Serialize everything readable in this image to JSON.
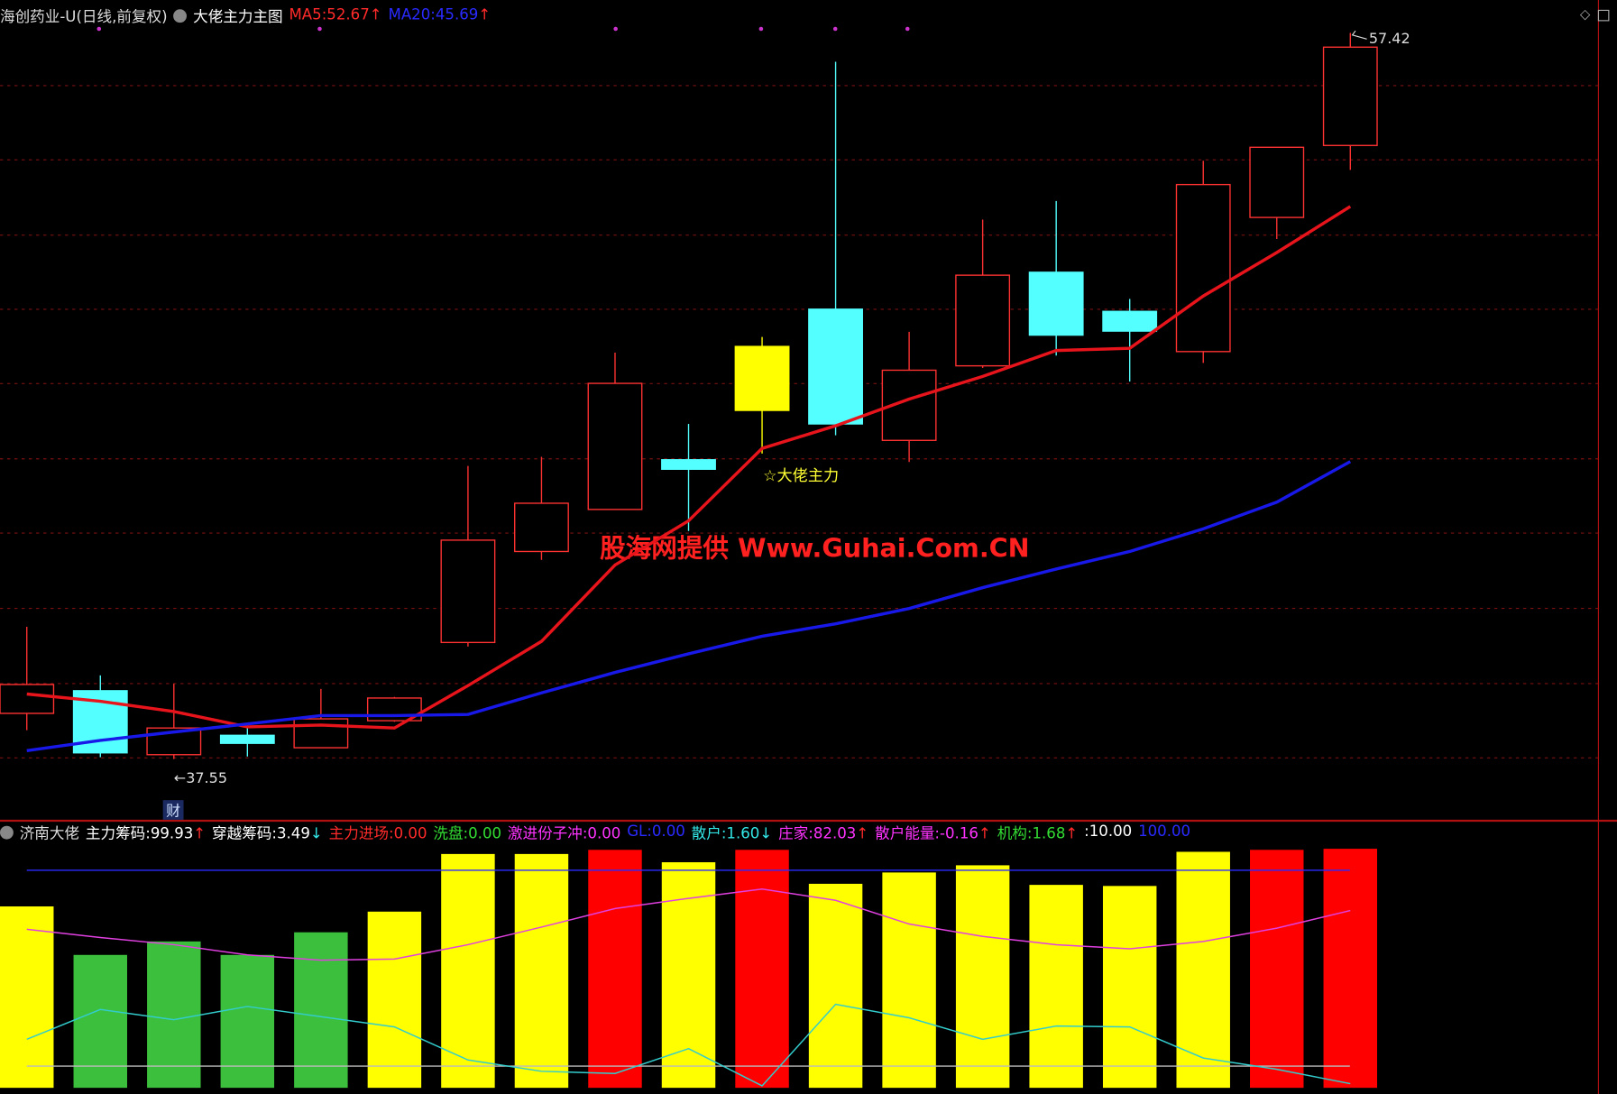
{
  "chart_data": [
    {
      "type": "candlestick",
      "title": "海创药业-U(日线,前复权)",
      "subtitle": "大佬主力主图",
      "legend": [
        {
          "label": "MA5:",
          "value": 52.67,
          "arrow": "↑",
          "color": "#ff2a2a"
        },
        {
          "label": "MA20:",
          "value": 45.69,
          "arrow": "↑",
          "color": "#2a2aff"
        }
      ],
      "categories": [
        null,
        null,
        null,
        null,
        null,
        null,
        null,
        null,
        null,
        null,
        null,
        null,
        null,
        null,
        null,
        null,
        null,
        null,
        null
      ],
      "open": [
        38.8,
        39.42,
        37.67,
        38.2,
        37.86,
        38.6,
        40.74,
        43.23,
        44.38,
        45.74,
        47.09,
        49.86,
        46.27,
        48.31,
        50.87,
        49.8,
        48.7,
        52.37,
        54.34
      ],
      "high": [
        41.17,
        39.84,
        39.61,
        38.43,
        39.47,
        39.25,
        45.57,
        45.82,
        48.67,
        46.72,
        49.1,
        56.63,
        49.24,
        52.31,
        52.82,
        50.14,
        53.92,
        54.29,
        57.42
      ],
      "low": [
        38.34,
        37.6,
        37.55,
        37.62,
        37.86,
        38.57,
        40.63,
        43.0,
        44.38,
        43.79,
        45.91,
        46.41,
        45.68,
        48.25,
        48.59,
        47.88,
        48.39,
        51.78,
        53.67
      ],
      "close": [
        39.59,
        37.72,
        38.4,
        37.98,
        38.65,
        39.22,
        43.54,
        44.55,
        47.83,
        45.48,
        48.84,
        46.72,
        48.19,
        50.79,
        49.15,
        49.26,
        53.27,
        54.29,
        57.03
      ],
      "colors": [
        "#ff3232",
        "#54ffff",
        "#ff3232",
        "#54ffff",
        "#ff3232",
        "#ff3232",
        "#ff3232",
        "#ff3232",
        "#ff3232",
        "#54ffff",
        "#ffff00",
        "#54ffff",
        "#ff3232",
        "#ff3232",
        "#54ffff",
        "#54ffff",
        "#ff3232",
        "#ff3232",
        "#ff3232"
      ],
      "filled": [
        false,
        true,
        false,
        true,
        false,
        false,
        false,
        false,
        false,
        true,
        true,
        true,
        false,
        false,
        true,
        true,
        false,
        false,
        false
      ],
      "series": [
        {
          "name": "MA5",
          "color": "#e8141c",
          "values": [
            39.33,
            39.13,
            38.85,
            38.43,
            38.48,
            38.4,
            39.56,
            40.77,
            42.86,
            44.07,
            46.05,
            46.67,
            47.4,
            48.02,
            48.73,
            48.79,
            50.22,
            51.41,
            52.67
          ]
        },
        {
          "name": "MA20",
          "color": "#1818e8",
          "values": [
            37.78,
            38.06,
            38.29,
            38.51,
            38.74,
            38.74,
            38.77,
            39.36,
            39.92,
            40.43,
            40.91,
            41.25,
            41.67,
            42.24,
            42.75,
            43.23,
            43.85,
            44.58,
            45.69
          ]
        }
      ],
      "ylim": [
        35.89,
        58.32
      ],
      "high_label": "57.42",
      "low_label": "←37.55",
      "annotation": "☆大佬主力",
      "watermark": "股海网提供 Www.Guhai.Com.CN",
      "marker": "财"
    },
    {
      "type": "bar",
      "title": "济南大佬",
      "legend": [
        {
          "label": "主力筹码:",
          "value": 99.93,
          "arrow": "↑",
          "color": "#ffffff"
        },
        {
          "label": "穿越筹码:",
          "value": 3.49,
          "arrow": "↓",
          "color": "#ffffff"
        },
        {
          "label": "主力进场:",
          "value": 0,
          "value_label": "0.00",
          "color": "#ff2a2a"
        },
        {
          "label": "洗盘:",
          "value": 0,
          "value_label": "0.00",
          "color": "#33dd33"
        },
        {
          "label": "激进份子冲:",
          "value": 0,
          "value_label": "0.00",
          "color": "#ff33ff"
        },
        {
          "label": "GL:",
          "value": 0,
          "value_label": "0.00",
          "color": "#2a2aff"
        },
        {
          "label": "散户:",
          "value": 1.6,
          "value_label": "1.60",
          "arrow": "↓",
          "color": "#33e6e6"
        },
        {
          "label": "庄家:",
          "value": 82.03,
          "arrow": "↑",
          "color": "#ff33ff"
        },
        {
          "label": "散户能量:",
          "value": -0.16,
          "arrow": "↑",
          "color": "#ff33ff"
        },
        {
          "label": "机构:",
          "value": 1.68,
          "arrow": "↑",
          "color": "#33dd33"
        },
        {
          "label": ":",
          "value": 10,
          "value_label": "10.00",
          "color": "#ffffff"
        },
        {
          "label": "",
          "value": 100,
          "value_label": "100.00",
          "color": "#2a2aff"
        }
      ],
      "categories": [
        null,
        null,
        null,
        null,
        null,
        null,
        null,
        null,
        null,
        null,
        null,
        null,
        null,
        null,
        null,
        null,
        null,
        null,
        null
      ],
      "values": [
        83.4,
        61.1,
        67.3,
        61.1,
        71.5,
        81.0,
        107.5,
        107.5,
        109.4,
        103.7,
        109.4,
        93.8,
        99.0,
        102.3,
        93.3,
        92.8,
        108.5,
        109.4,
        109.9
      ],
      "colors": [
        "#ffff00",
        "#3cbf3c",
        "#3cbf3c",
        "#3cbf3c",
        "#3cbf3c",
        "#ffff00",
        "#ffff00",
        "#ffff00",
        "#ff0000",
        "#ffff00",
        "#ff0000",
        "#ffff00",
        "#ffff00",
        "#ffff00",
        "#ffff00",
        "#ffff00",
        "#ffff00",
        "#ff0000",
        "#ff0000"
      ],
      "lines": [
        {
          "color": "#e040e0",
          "values": [
            72.9,
            69.1,
            65.8,
            61.1,
            58.7,
            59.2,
            65.8,
            73.9,
            82.4,
            87.1,
            91.4,
            86.2,
            75.3,
            69.6,
            65.8,
            63.9,
            67.3,
            73.4,
            81.5
          ]
        },
        {
          "color": "#33cccc",
          "values": [
            22.3,
            36.0,
            31.3,
            37.4,
            32.7,
            28.0,
            12.8,
            7.6,
            6.6,
            18.0,
            0.9,
            38.4,
            32.2,
            22.3,
            28.4,
            28.0,
            13.7,
            8.5,
            1.9
          ]
        }
      ],
      "ylim": [
        0,
        111.4
      ]
    }
  ]
}
